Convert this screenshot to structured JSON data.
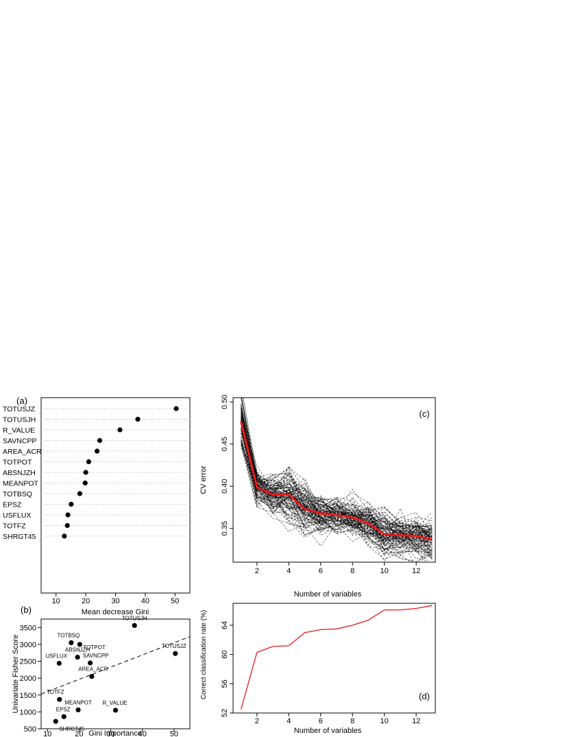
{
  "colors": {
    "axis": "#000000",
    "point": "#000000",
    "grid": "#bbbbbb",
    "cv_lines": "#000000",
    "mean_line": "#e41a1c",
    "ccr_line": "#e41a1c",
    "trend": "#000000"
  },
  "chart_data": [
    {
      "id": "a",
      "panel_label": "(a)",
      "type": "scatter",
      "subtype": "dotchart",
      "xlabel": "Mean decrease Gini",
      "ylabel": "",
      "xlim": [
        5,
        55
      ],
      "xticks": [
        10,
        20,
        30,
        40,
        50
      ],
      "categories": [
        "TOTUSJZ",
        "TOTUSJH",
        "R_VALUE",
        "SAVNCPP",
        "AREA_ACR",
        "TOTPOT",
        "ABSNJZH",
        "MEANPOT",
        "TOTBSQ",
        "EPSZ",
        "USFLUX",
        "TOTFZ",
        "SHRGT45"
      ],
      "values": [
        50.4,
        37.5,
        31.5,
        24.7,
        23.8,
        21.0,
        20.0,
        19.8,
        18.0,
        15.1,
        14.0,
        13.8,
        12.8
      ]
    },
    {
      "id": "b",
      "panel_label": "(b)",
      "type": "scatter",
      "xlabel": "Gini Importance",
      "ylabel": "Univariate Fisher Score",
      "xlim": [
        8,
        55
      ],
      "ylim": [
        500,
        3750
      ],
      "xticks": [
        10,
        20,
        30,
        40,
        50
      ],
      "yticks": [
        500,
        1000,
        1500,
        2000,
        2500,
        3000,
        3500
      ],
      "points": [
        {
          "label": "TOTUSJH",
          "x": 37.5,
          "y": 3560
        },
        {
          "label": "TOTBSQ",
          "x": 17.5,
          "y": 3050
        },
        {
          "label": "TOTPOT",
          "x": 20.2,
          "y": 3000
        },
        {
          "label": "TOTUSJZ",
          "x": 50.4,
          "y": 2730
        },
        {
          "label": "ABSNJZH",
          "x": 19.5,
          "y": 2620
        },
        {
          "label": "USFLUX",
          "x": 13.7,
          "y": 2440
        },
        {
          "label": "SAVNCPP",
          "x": 23.5,
          "y": 2450
        },
        {
          "label": "AREA_ACR",
          "x": 24.0,
          "y": 2050
        },
        {
          "label": "TOTFZ",
          "x": 13.8,
          "y": 1370
        },
        {
          "label": "MEANPOT",
          "x": 19.7,
          "y": 1060
        },
        {
          "label": "R_VALUE",
          "x": 31.5,
          "y": 1050
        },
        {
          "label": "EPSZ",
          "x": 15.2,
          "y": 860
        },
        {
          "label": "SHRGT45",
          "x": 12.6,
          "y": 720
        }
      ],
      "trend": {
        "style": "dashed",
        "from": [
          8,
          1530
        ],
        "to": [
          55,
          3230
        ]
      }
    },
    {
      "id": "c",
      "panel_label": "(c)",
      "type": "line",
      "xlabel": "Number of variables",
      "ylabel": "CV error",
      "xlim": [
        0.5,
        13.2
      ],
      "ylim": [
        0.31,
        0.505
      ],
      "xticks": [
        2,
        4,
        6,
        8,
        10,
        12
      ],
      "yticks": [
        0.35,
        0.4,
        0.45,
        0.5
      ],
      "x": [
        1,
        2,
        3,
        4,
        5,
        6,
        7,
        8,
        9,
        10,
        11,
        12,
        13
      ],
      "mean": [
        0.477,
        0.399,
        0.39,
        0.39,
        0.373,
        0.368,
        0.366,
        0.363,
        0.356,
        0.343,
        0.342,
        0.341,
        0.337
      ],
      "spread": [
        0.019,
        0.011,
        0.014,
        0.016,
        0.016,
        0.013,
        0.012,
        0.012,
        0.014,
        0.015,
        0.014,
        0.013,
        0.014
      ],
      "n_runs": 100
    },
    {
      "id": "d",
      "panel_label": "(d)",
      "type": "line",
      "xlabel": "Number of variables",
      "ylabel": "Correct classification rate (%)",
      "xlim": [
        0.5,
        13.2
      ],
      "ylim": [
        52,
        67
      ],
      "xticks": [
        2,
        4,
        6,
        8,
        10,
        12
      ],
      "yticks": [
        52,
        56,
        60,
        64
      ],
      "x": [
        1,
        2,
        3,
        4,
        5,
        6,
        7,
        8,
        9,
        10,
        11,
        12,
        13
      ],
      "values": [
        52.5,
        60.3,
        61.1,
        61.2,
        63.0,
        63.4,
        63.5,
        64.0,
        64.7,
        66.1,
        66.1,
        66.3,
        66.7
      ]
    }
  ]
}
